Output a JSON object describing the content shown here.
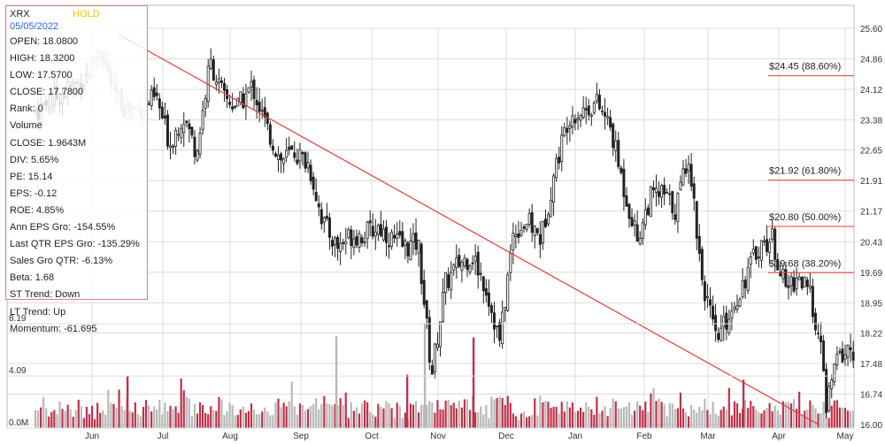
{
  "info": {
    "ticker": "XRX",
    "rating": "HOLD",
    "date": "05/05/2022",
    "stats": [
      "OPEN: 18.0800",
      "HIGH: 18.3200",
      "LOW: 17.5700",
      "CLOSE: 17.7800",
      "Rank: 0",
      "Volume",
      "CLOSE: 1.9643M",
      "DIV: 5.65%",
      "PE: 15.14",
      "EPS: -0.12",
      "ROE: 4.85%",
      "Ann EPS Gro: -154.55%",
      "Last QTR EPS Gro: -135.29%",
      "Sales Gro QTR: -6.13%",
      "Beta: 1.68",
      "ST Trend: Down",
      "LT Trend: Up",
      "Momentum: -61.695"
    ]
  },
  "chart_data": {
    "type": "candlestick",
    "x_labels": [
      "Jun",
      "Jul",
      "Aug",
      "Sep",
      "Oct",
      "Nov",
      "Dec",
      "Jan",
      "Feb",
      "Mar",
      "Apr",
      "May"
    ],
    "price_axis": {
      "ticks": [
        "25.60",
        "24.86",
        "24.12",
        "23.38",
        "22.65",
        "21.91",
        "21.17",
        "20.43",
        "19.69",
        "18.95",
        "18.22",
        "17.48",
        "16.74",
        "16.00"
      ],
      "range": [
        16.0,
        25.6
      ]
    },
    "volume_axis": {
      "ticks": [
        "8.19",
        "4.09",
        "0.0M"
      ],
      "range": [
        0,
        8.19
      ],
      "unit": "M"
    },
    "trendline": {
      "start": {
        "month": "Jun",
        "price": 25.45
      },
      "end": {
        "month": "Apr",
        "price": 16.0
      }
    },
    "fib_levels": [
      {
        "label": "$24.45 (88.60%)",
        "price": 24.45
      },
      {
        "label": "$21.92 (61.80%)",
        "price": 21.92
      },
      {
        "label": "$20.80 (50.00%)",
        "price": 20.8
      },
      {
        "label": "$19.68 (38.20%)",
        "price": 19.68
      }
    ],
    "price_path": [
      [
        "May",
        23.6
      ],
      [
        "Jun",
        24.4
      ],
      [
        "Jun",
        25.2
      ],
      [
        "Jun",
        24.0
      ],
      [
        "Jun",
        23.6
      ],
      [
        "Jul",
        23.9
      ],
      [
        "Jul",
        22.8
      ],
      [
        "Jul",
        23.5
      ],
      [
        "Jul",
        22.6
      ],
      [
        "Jul",
        24.8
      ],
      [
        "Aug",
        23.9
      ],
      [
        "Aug",
        23.7
      ],
      [
        "Aug",
        24.2
      ],
      [
        "Aug",
        23.2
      ],
      [
        "Aug",
        22.4
      ],
      [
        "Sep",
        22.6
      ],
      [
        "Sep",
        22.3
      ],
      [
        "Sep",
        20.9
      ],
      [
        "Sep",
        20.3
      ],
      [
        "Sep",
        20.6
      ],
      [
        "Oct",
        20.6
      ],
      [
        "Oct",
        20.8
      ],
      [
        "Oct",
        20.5
      ],
      [
        "Oct",
        20.3
      ],
      [
        "Oct",
        20.4
      ],
      [
        "Nov",
        17.2
      ],
      [
        "Nov",
        19.4
      ],
      [
        "Nov",
        19.9
      ],
      [
        "Nov",
        20.1
      ],
      [
        "Nov",
        19.3
      ],
      [
        "Dec",
        18.0
      ],
      [
        "Dec",
        20.7
      ],
      [
        "Dec",
        20.9
      ],
      [
        "Dec",
        20.5
      ],
      [
        "Dec",
        22.2
      ],
      [
        "Jan",
        23.5
      ],
      [
        "Jan",
        23.6
      ],
      [
        "Jan",
        23.8
      ],
      [
        "Jan",
        23.2
      ],
      [
        "Jan",
        21.7
      ],
      [
        "Feb",
        20.5
      ],
      [
        "Feb",
        21.5
      ],
      [
        "Feb",
        21.6
      ],
      [
        "Feb",
        21.2
      ],
      [
        "Feb",
        22.6
      ],
      [
        "Mar",
        19.6
      ],
      [
        "Mar",
        18.0
      ],
      [
        "Mar",
        18.7
      ],
      [
        "Mar",
        19.5
      ],
      [
        "Mar",
        20.3
      ],
      [
        "Apr",
        20.5
      ],
      [
        "Apr",
        19.3
      ],
      [
        "Apr",
        19.6
      ],
      [
        "Apr",
        19.0
      ],
      [
        "Apr",
        16.3
      ],
      [
        "May",
        17.2
      ],
      [
        "May",
        17.6
      ],
      [
        "May",
        17.8
      ]
    ],
    "volume_profile": [
      1.2,
      1.4,
      1.1,
      1.3,
      1.2,
      1.0,
      1.2,
      1.5,
      1.2,
      1.0,
      1.3,
      1.4,
      1.2,
      1.6,
      1.3,
      1.2,
      1.4,
      1.2,
      1.1,
      1.4,
      1.2,
      1.3,
      1.1,
      1.4,
      1.5,
      1.2,
      1.3,
      1.2,
      1.1,
      1.2,
      1.3,
      1.6,
      1.4,
      1.3,
      1.5,
      1.2,
      1.3,
      1.4,
      1.2,
      1.3,
      1.4,
      1.3,
      1.2,
      1.5,
      1.3,
      1.4,
      1.6,
      1.3,
      1.2,
      1.4,
      1.3,
      1.5,
      1.2,
      1.6,
      1.8,
      2.2,
      2.0,
      1.9
    ],
    "volume_spikes": [
      {
        "month": "Jun",
        "value": 4.1
      },
      {
        "month": "Sep",
        "value": 7.2
      },
      {
        "month": "Oct",
        "value": 4.2
      },
      {
        "month": "Oct",
        "value": 8.2
      },
      {
        "month": "Nov",
        "value": 7.1
      },
      {
        "month": "Mar",
        "value": 3.8
      }
    ],
    "colors": {
      "up": "#222222",
      "down": "#222222",
      "trendline": "#e03c3c",
      "fib": "#e03c3c",
      "volume_up": "#c0314a",
      "volume_down": "#b8b8b8",
      "grid": "#dcdcdc"
    }
  }
}
